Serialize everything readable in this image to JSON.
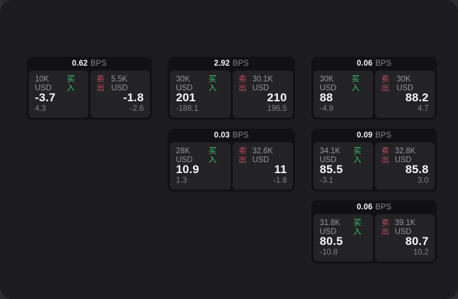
{
  "colors": {
    "buy_green": "#36c573",
    "sell_red": "#c44a5e",
    "panel_bg": "#1c1c1e",
    "card_bg": "#111113",
    "pane_bg": "#232326"
  },
  "cards": [
    {
      "bps": "0.62",
      "bps_unit": "BPS",
      "buy": {
        "amount": "10K USD",
        "side_label": "买入",
        "price": "-3.7",
        "delta": "4.3"
      },
      "sell": {
        "side_label": "卖出",
        "amount": "5.5K USD",
        "price": "-1.8",
        "delta": "-2.6"
      }
    },
    {
      "bps": "2.92",
      "bps_unit": "BPS",
      "buy": {
        "amount": "30K USD",
        "side_label": "买入",
        "price": "201",
        "delta": "-188.1"
      },
      "sell": {
        "side_label": "卖出",
        "amount": "30.1K USD",
        "price": "210",
        "delta": "196.5"
      }
    },
    {
      "bps": "0.06",
      "bps_unit": "BPS",
      "buy": {
        "amount": "30K USD",
        "side_label": "买入",
        "price": "88",
        "delta": "-4.9"
      },
      "sell": {
        "side_label": "卖出",
        "amount": "30K USD",
        "price": "88.2",
        "delta": "4.7"
      }
    },
    {
      "bps": "0.03",
      "bps_unit": "BPS",
      "buy": {
        "amount": "28K USD",
        "side_label": "买入",
        "price": "10.9",
        "delta": "1.3"
      },
      "sell": {
        "side_label": "卖出",
        "amount": "32.6K USD",
        "price": "11",
        "delta": "-1.8"
      }
    },
    {
      "bps": "0.09",
      "bps_unit": "BPS",
      "buy": {
        "amount": "34.1K USD",
        "side_label": "买入",
        "price": "85.5",
        "delta": "-3.1"
      },
      "sell": {
        "side_label": "卖出",
        "amount": "32.8K USD",
        "price": "85.8",
        "delta": "3.0"
      }
    },
    {
      "bps": "0.06",
      "bps_unit": "BPS",
      "buy": {
        "amount": "31.8K USD",
        "side_label": "买入",
        "price": "80.5",
        "delta": "-10.8"
      },
      "sell": {
        "side_label": "卖出",
        "amount": "39.1K USD",
        "price": "80.7",
        "delta": "10.2"
      }
    }
  ]
}
